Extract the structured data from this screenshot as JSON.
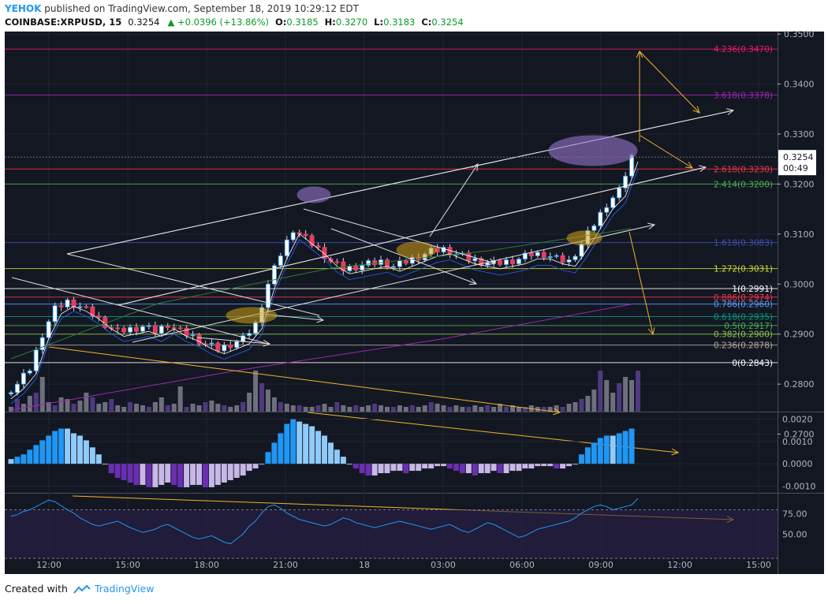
{
  "header": {
    "user": "YEHOK",
    "published": "published on TradingView.com, September 18, 2019 10:29:12 EDT",
    "symbol": "COINBASE:XRPUSD, 15",
    "price": "0.3254",
    "change": "▲ +0.0396 (+13.86%)",
    "o_label": "O:",
    "o_value": "0.3185",
    "h_label": "H:",
    "h_value": "0.3270",
    "l_label": "L:",
    "l_value": "0.3183",
    "c_label": "C:",
    "c_value": "0.3254"
  },
  "footer": {
    "created": "Created with",
    "brand": "TradingView"
  },
  "chart_data": [
    {
      "type": "candlestick",
      "ylim": [
        0.2745,
        0.3505
      ],
      "y_ticks": [
        0.27,
        0.28,
        0.29,
        0.3,
        0.31,
        0.32,
        0.33,
        0.34,
        0.35
      ],
      "x_ticks": [
        "12:00",
        "15:00",
        "18:00",
        "21:00",
        "18",
        "03:00",
        "06:00",
        "09:00",
        "12:00",
        "15:00"
      ],
      "current_price_label": "0.3254",
      "countdown": "00:49",
      "close_path": [
        [
          0,
          0.278
        ],
        [
          2,
          0.28
        ],
        [
          4,
          0.283
        ],
        [
          6,
          0.29
        ],
        [
          8,
          0.295
        ],
        [
          10,
          0.2965
        ],
        [
          12,
          0.2955
        ],
        [
          14,
          0.294
        ],
        [
          16,
          0.292
        ],
        [
          18,
          0.2905
        ],
        [
          20,
          0.291
        ],
        [
          22,
          0.2915
        ],
        [
          24,
          0.2905
        ],
        [
          26,
          0.292
        ],
        [
          28,
          0.2905
        ],
        [
          30,
          0.2895
        ],
        [
          32,
          0.288
        ],
        [
          34,
          0.287
        ],
        [
          36,
          0.288
        ],
        [
          38,
          0.289
        ],
        [
          40,
          0.292
        ],
        [
          42,
          0.3
        ],
        [
          44,
          0.306
        ],
        [
          46,
          0.311
        ],
        [
          48,
          0.309
        ],
        [
          50,
          0.307
        ],
        [
          52,
          0.3045
        ],
        [
          54,
          0.303
        ],
        [
          56,
          0.3035
        ],
        [
          58,
          0.304
        ],
        [
          60,
          0.3045
        ],
        [
          62,
          0.3035
        ],
        [
          64,
          0.3045
        ],
        [
          66,
          0.3055
        ],
        [
          68,
          0.3065
        ],
        [
          70,
          0.307
        ],
        [
          72,
          0.306
        ],
        [
          74,
          0.305
        ],
        [
          76,
          0.3045
        ],
        [
          78,
          0.304
        ],
        [
          80,
          0.3045
        ],
        [
          82,
          0.305
        ],
        [
          84,
          0.306
        ],
        [
          86,
          0.306
        ],
        [
          88,
          0.305
        ],
        [
          90,
          0.3045
        ],
        [
          92,
          0.308
        ],
        [
          94,
          0.312
        ],
        [
          96,
          0.316
        ],
        [
          98,
          0.3185
        ],
        [
          100,
          0.3254
        ]
      ],
      "fib_levels": [
        {
          "label": "4.236(0.3470)",
          "value": 0.347,
          "color": "#e91e63"
        },
        {
          "label": "3.618(0.3378)",
          "value": 0.3378,
          "color": "#9c27b0"
        },
        {
          "label": "2.618(0.3230)",
          "value": 0.323,
          "color": "#f23645"
        },
        {
          "label": "2.414(0.3200)",
          "value": 0.32,
          "color": "#4caf50"
        },
        {
          "label": "1.618(0.3083)",
          "value": 0.3083,
          "color": "#3f51b5"
        },
        {
          "label": "1.272(0.3031)",
          "value": 0.3031,
          "color": "#cddc39"
        },
        {
          "label": "1(0.2991)",
          "value": 0.2991,
          "color": "#ffffff"
        },
        {
          "label": "0.886(0.2974)",
          "value": 0.2974,
          "color": "#f23645"
        },
        {
          "label": "0.786(0.2960)",
          "value": 0.296,
          "color": "#5b9cf6"
        },
        {
          "label": "0.618(0.2935)",
          "value": 0.2935,
          "color": "#089981"
        },
        {
          "label": "0.5(0.2917)",
          "value": 0.2917,
          "color": "#4caf50"
        },
        {
          "label": "0.382(0.2900)",
          "value": 0.29,
          "color": "#8bc34a"
        },
        {
          "label": "0.236(0.2878)",
          "value": 0.2878,
          "color": "#b2a9a0"
        },
        {
          "label": "0(0.2843)",
          "value": 0.2843,
          "color": "#ffffff"
        }
      ]
    },
    {
      "type": "bar",
      "name": "histogram",
      "ylim": [
        -0.0013,
        0.0023
      ],
      "y_ticks": [
        -0.001,
        0.0,
        0.001,
        0.002
      ],
      "y_tick_labels": [
        "-0.0010",
        "0.0000",
        "0.0010",
        "0.0020"
      ]
    },
    {
      "type": "line",
      "name": "oscillator",
      "ylim": [
        25,
        100
      ],
      "y_ticks": [
        50,
        75
      ],
      "y_tick_labels": [
        "50.00",
        "75.00"
      ]
    }
  ]
}
